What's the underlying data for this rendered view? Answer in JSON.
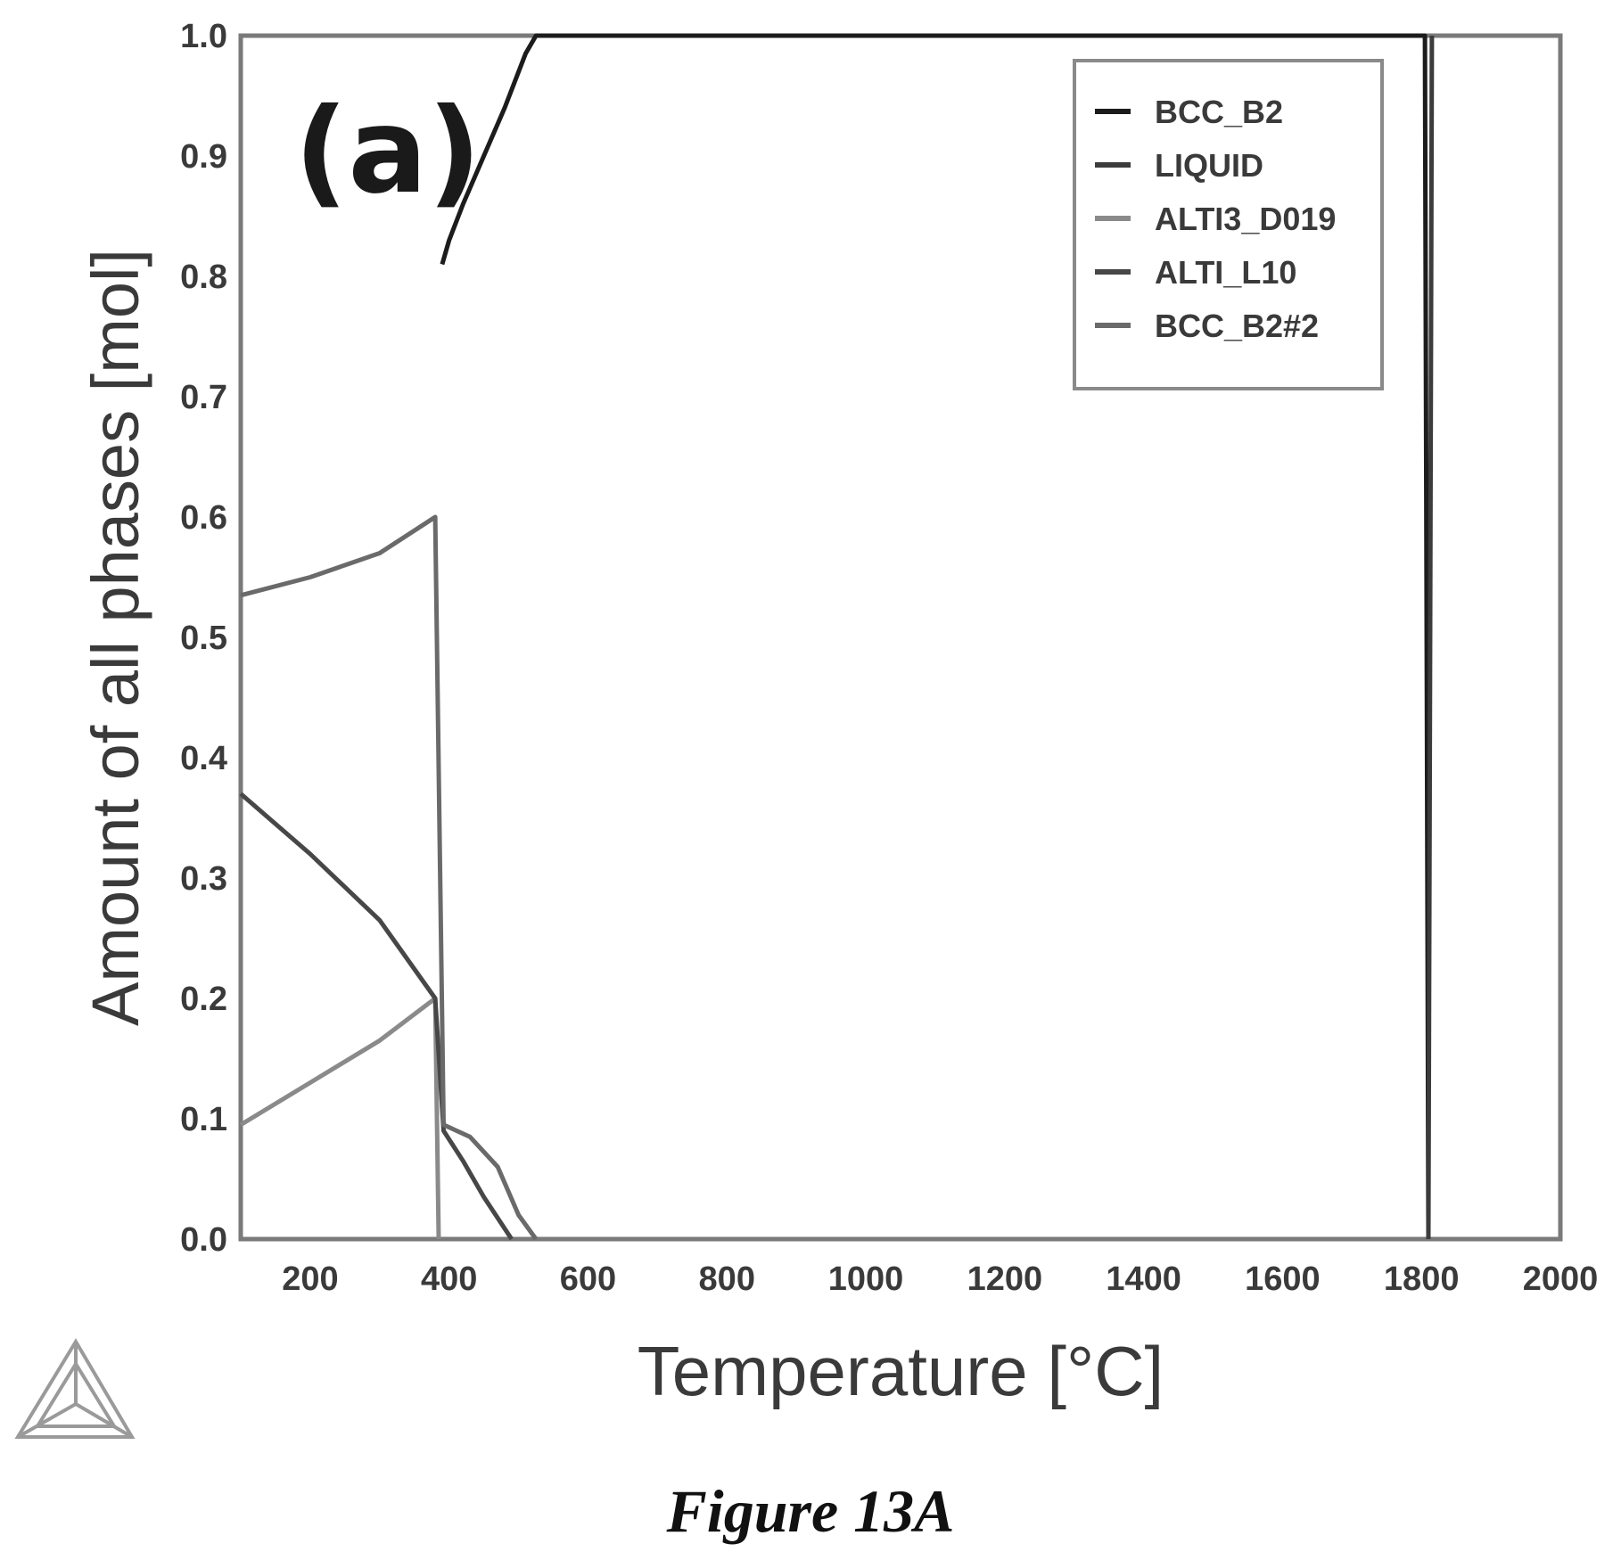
{
  "chart_data": {
    "type": "line",
    "panel_label": "(a)",
    "xlabel": "Temperature [°C]",
    "ylabel": "Amount of all phases [mol]",
    "xlim": [
      100,
      2000
    ],
    "ylim": [
      0,
      1.0
    ],
    "x_ticks": [
      200,
      400,
      600,
      800,
      1000,
      1200,
      1400,
      1600,
      1800,
      2000
    ],
    "y_ticks": [
      "0.0",
      "0.1",
      "0.2",
      "0.3",
      "0.4",
      "0.5",
      "0.6",
      "0.7",
      "0.8",
      "0.9",
      "1.0"
    ],
    "grid": false,
    "legend_position": "top-right",
    "series": [
      {
        "name": "BCC_B2",
        "color": "#1c1c1c",
        "points": [
          [
            390,
            0.81
          ],
          [
            400,
            0.83
          ],
          [
            420,
            0.86
          ],
          [
            450,
            0.9
          ],
          [
            480,
            0.94
          ],
          [
            510,
            0.985
          ],
          [
            525,
            1.0
          ],
          [
            1805,
            1.0
          ],
          [
            1810,
            0.0
          ]
        ]
      },
      {
        "name": "LIQUID",
        "color": "#3c3c3c",
        "points": [
          [
            1810,
            0.0
          ],
          [
            1815,
            1.0
          ]
        ]
      },
      {
        "name": "ALTI3_D019",
        "color": "#8a8a8a",
        "points": [
          [
            100,
            0.095
          ],
          [
            200,
            0.13
          ],
          [
            300,
            0.165
          ],
          [
            380,
            0.2
          ],
          [
            385,
            0.0
          ]
        ]
      },
      {
        "name": "ALTI_L10",
        "color": "#474747",
        "points": [
          [
            100,
            0.37
          ],
          [
            200,
            0.32
          ],
          [
            300,
            0.265
          ],
          [
            380,
            0.2
          ],
          [
            392,
            0.09
          ],
          [
            420,
            0.065
          ],
          [
            450,
            0.035
          ],
          [
            490,
            0.0
          ]
        ]
      },
      {
        "name": "BCC_B2#2",
        "color": "#6a6a6a",
        "points": [
          [
            100,
            0.535
          ],
          [
            200,
            0.55
          ],
          [
            300,
            0.57
          ],
          [
            380,
            0.6
          ],
          [
            392,
            0.095
          ],
          [
            430,
            0.085
          ],
          [
            470,
            0.06
          ],
          [
            500,
            0.02
          ],
          [
            525,
            0.0
          ]
        ]
      }
    ]
  },
  "caption": "Figure 13A",
  "logo": "thermo-calc-triangle-logo"
}
